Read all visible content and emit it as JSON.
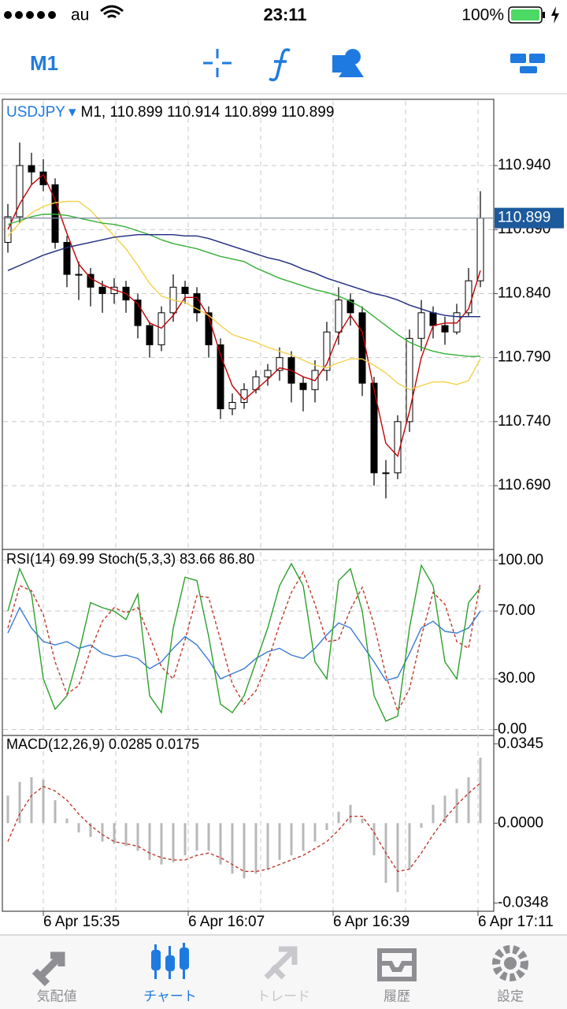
{
  "status_bar": {
    "carrier": "au",
    "time": "23:11",
    "battery": "100%"
  },
  "toolbar": {
    "timeframe": "M1"
  },
  "chart_data": [
    {
      "type": "candlestick",
      "symbol": "USDJPY",
      "title": "M1, 110.899 110.914 110.899 110.899",
      "open": [
        110.88,
        110.9,
        110.94,
        110.935,
        110.925,
        110.88,
        110.855,
        110.855,
        110.845,
        110.84,
        110.845,
        110.835,
        110.815,
        110.8,
        110.825,
        110.845,
        110.84,
        110.825,
        110.8,
        110.75,
        110.755,
        110.765,
        110.775,
        110.78,
        110.79,
        110.77,
        110.765,
        110.78,
        110.81,
        110.835,
        110.825,
        110.77,
        110.7,
        110.7,
        110.74,
        110.805,
        110.825,
        110.815,
        110.81,
        110.825,
        110.85
      ],
      "high": [
        110.91,
        110.958,
        110.95,
        110.945,
        110.93,
        110.885,
        110.865,
        110.86,
        110.85,
        110.852,
        110.85,
        110.84,
        110.818,
        110.83,
        110.855,
        110.85,
        110.845,
        110.83,
        110.805,
        110.762,
        110.77,
        110.78,
        110.785,
        110.798,
        110.795,
        110.775,
        110.788,
        110.818,
        110.845,
        110.84,
        110.83,
        110.775,
        110.71,
        110.745,
        110.812,
        110.835,
        110.83,
        110.822,
        110.832,
        110.86,
        110.92
      ],
      "low": [
        110.872,
        110.895,
        110.925,
        110.92,
        110.875,
        110.845,
        110.835,
        110.83,
        110.825,
        110.832,
        110.825,
        110.805,
        110.79,
        110.795,
        110.818,
        110.832,
        110.818,
        110.79,
        110.742,
        110.745,
        110.75,
        110.762,
        110.768,
        110.772,
        110.755,
        110.748,
        110.755,
        110.772,
        110.8,
        110.815,
        110.76,
        110.69,
        110.68,
        110.695,
        110.732,
        110.795,
        110.805,
        110.8,
        110.808,
        110.822,
        110.845
      ],
      "close": [
        110.9,
        110.94,
        110.935,
        110.925,
        110.88,
        110.855,
        110.855,
        110.845,
        110.84,
        110.845,
        110.835,
        110.815,
        110.8,
        110.825,
        110.845,
        110.84,
        110.825,
        110.8,
        110.75,
        110.755,
        110.765,
        110.775,
        110.78,
        110.79,
        110.77,
        110.765,
        110.78,
        110.81,
        110.835,
        110.825,
        110.77,
        110.7,
        110.7,
        110.74,
        110.805,
        110.825,
        110.815,
        110.81,
        110.825,
        110.85,
        110.899
      ],
      "series": [
        {
          "color": "#c00000",
          "values": [
            110.89,
            110.91,
            110.925,
            110.933,
            110.913,
            110.887,
            110.863,
            110.852,
            110.847,
            110.843,
            110.84,
            110.832,
            110.817,
            110.813,
            110.823,
            110.837,
            110.837,
            110.822,
            110.792,
            110.768,
            110.757,
            110.765,
            110.773,
            110.782,
            110.78,
            110.775,
            110.772,
            110.785,
            110.808,
            110.823,
            110.81,
            110.765,
            110.723,
            110.713,
            110.748,
            110.79,
            110.815,
            110.817,
            110.817,
            110.828,
            110.858
          ]
        },
        {
          "color": "#f2d24a",
          "values": [
            110.885,
            110.895,
            110.903,
            110.908,
            110.911,
            110.912,
            110.912,
            110.905,
            110.895,
            110.885,
            110.875,
            110.862,
            110.848,
            110.838,
            110.835,
            110.833,
            110.828,
            110.823,
            110.815,
            110.808,
            110.805,
            110.802,
            110.798,
            110.795,
            110.792,
            110.788,
            110.784,
            110.782,
            110.786,
            110.789,
            110.789,
            110.784,
            110.778,
            110.77,
            110.765,
            110.768,
            110.771,
            110.771,
            110.769,
            110.772,
            110.789
          ]
        },
        {
          "color": "#34b034",
          "values": [
            110.894,
            110.897,
            110.9,
            110.902,
            110.902,
            110.901,
            110.899,
            110.897,
            110.895,
            110.894,
            110.892,
            110.889,
            110.886,
            110.882,
            110.879,
            110.877,
            110.875,
            110.872,
            110.869,
            110.867,
            110.865,
            110.86,
            110.856,
            110.852,
            110.849,
            110.846,
            110.843,
            110.841,
            110.838,
            110.834,
            110.829,
            110.822,
            110.815,
            110.808,
            110.802,
            110.798,
            110.795,
            110.793,
            110.792,
            110.791,
            110.791
          ]
        },
        {
          "color": "#1c2a80",
          "values": [
            110.858,
            110.862,
            110.866,
            110.87,
            110.873,
            110.876,
            110.878,
            110.88,
            110.882,
            110.884,
            110.885,
            110.886,
            110.886,
            110.886,
            110.886,
            110.885,
            110.885,
            110.883,
            110.88,
            110.877,
            110.874,
            110.871,
            110.868,
            110.866,
            110.863,
            110.859,
            110.856,
            110.852,
            110.849,
            110.846,
            110.843,
            110.84,
            110.838,
            110.835,
            110.831,
            110.828,
            110.825,
            110.823,
            110.822,
            110.822,
            110.822
          ]
        }
      ],
      "last_price": 110.899,
      "ylim": [
        110.6414,
        110.9905
      ],
      "yticks": [
        {
          "value": 110.94,
          "label": "110.940"
        },
        {
          "value": 110.89,
          "label": "110.890"
        },
        {
          "value": 110.84,
          "label": "110.840"
        },
        {
          "value": 110.79,
          "label": "110.790"
        },
        {
          "value": 110.74,
          "label": "110.740"
        },
        {
          "value": 110.69,
          "label": "110.690"
        }
      ],
      "x_labels": [
        "6 Apr 15:35",
        "6 Apr 16:07",
        "6 Apr 16:39",
        "6 Apr 17:11"
      ],
      "grid": true
    },
    {
      "type": "line",
      "title": "RSI(14) 69.99 Stoch(5,3,3) 83.66 86.80",
      "series": [
        {
          "color": "#3a7bd5",
          "dash": false,
          "values": [
            57,
            72,
            60,
            52,
            50,
            52,
            48,
            50,
            45,
            43,
            44,
            42,
            36,
            40,
            48,
            55,
            50,
            41,
            30,
            33,
            36,
            42,
            46,
            48,
            44,
            42,
            48,
            56,
            63,
            60,
            50,
            40,
            29,
            31,
            45,
            60,
            64,
            58,
            57,
            60,
            69.99
          ]
        },
        {
          "color": "#2ca02c",
          "dash": false,
          "values": [
            70,
            95,
            80,
            30,
            12,
            20,
            45,
            75,
            72,
            70,
            65,
            80,
            20,
            10,
            60,
            90,
            88,
            55,
            15,
            10,
            20,
            40,
            60,
            85,
            98,
            85,
            40,
            30,
            88,
            95,
            70,
            20,
            5,
            8,
            60,
            97,
            85,
            40,
            30,
            75,
            83.66
          ]
        },
        {
          "color": "#c0392b",
          "dash": true,
          "values": [
            60,
            85,
            82,
            68,
            40,
            21,
            26,
            47,
            64,
            72,
            69,
            72,
            55,
            37,
            30,
            53,
            79,
            78,
            53,
            27,
            15,
            23,
            40,
            62,
            81,
            93,
            74,
            52,
            53,
            71,
            84,
            62,
            32,
            11,
            24,
            55,
            81,
            74,
            52,
            48,
            86.8
          ]
        }
      ],
      "ylim": [
        -3,
        105
      ],
      "yticks": [
        {
          "value": 100,
          "label": "100.00"
        },
        {
          "value": 70,
          "label": "70.00"
        },
        {
          "value": 30,
          "label": "30.00"
        },
        {
          "value": 0,
          "label": "0.00"
        }
      ],
      "grid": true
    },
    {
      "type": "macd",
      "title": "MACD(12,26,9) 0.0285 0.0175",
      "values": [
        0.012,
        0.018,
        0.02,
        0.019,
        0.01,
        0.002,
        -0.004,
        -0.006,
        -0.008,
        -0.009,
        -0.01,
        -0.012,
        -0.016,
        -0.018,
        -0.017,
        -0.014,
        -0.012,
        -0.012,
        -0.018,
        -0.022,
        -0.024,
        -0.022,
        -0.02,
        -0.016,
        -0.014,
        -0.012,
        -0.008,
        -0.003,
        0.005,
        0.008,
        0.002,
        -0.014,
        -0.026,
        -0.03,
        -0.02,
        -0.002,
        0.008,
        0.012,
        0.015,
        0.02,
        0.0285
      ],
      "color": "#b8b8b8",
      "series": [
        {
          "color": "#c0392b",
          "dash": true,
          "values": [
            -0.008,
            0.004,
            0.012,
            0.016,
            0.014,
            0.01,
            0.004,
            -0.001,
            -0.005,
            -0.008,
            -0.009,
            -0.01,
            -0.013,
            -0.015,
            -0.016,
            -0.016,
            -0.014,
            -0.013,
            -0.015,
            -0.018,
            -0.021,
            -0.021,
            -0.02,
            -0.018,
            -0.016,
            -0.014,
            -0.011,
            -0.008,
            -0.003,
            0.003,
            0.003,
            -0.004,
            -0.013,
            -0.021,
            -0.02,
            -0.013,
            -0.005,
            0.002,
            0.008,
            0.013,
            0.0175
          ]
        }
      ],
      "ylim": [
        -0.038,
        0.0375
      ],
      "yticks": [
        0.0345,
        {
          "value": 0,
          "label": "0.0000"
        },
        -0.0348
      ],
      "grid": false
    }
  ],
  "tab_bar": {
    "tabs": [
      "気配値",
      "チャート",
      "トレード",
      "履歴",
      "設定"
    ]
  }
}
